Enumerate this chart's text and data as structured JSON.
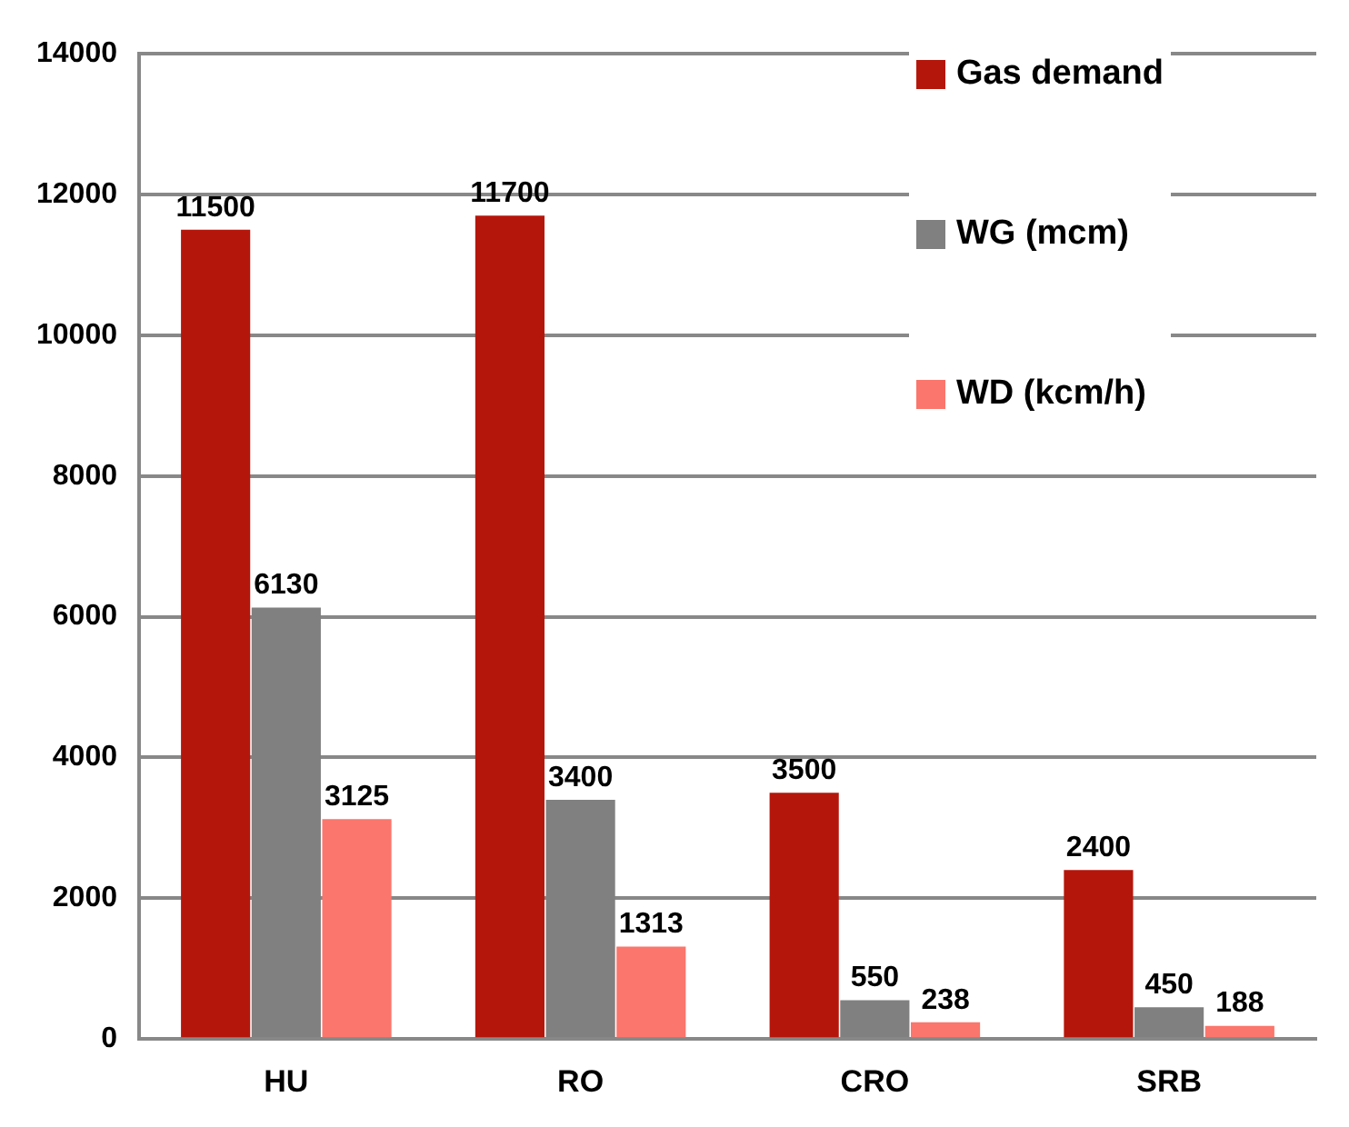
{
  "chart_data": {
    "type": "bar",
    "categories": [
      "HU",
      "RO",
      "CRO",
      "SRB"
    ],
    "series": [
      {
        "name": "Gas demand",
        "color": "#b5160b",
        "values": [
          11500,
          11700,
          3500,
          2400
        ]
      },
      {
        "name": "WG (mcm)",
        "color": "#808080",
        "values": [
          6130,
          3400,
          550,
          450
        ]
      },
      {
        "name": "WD (kcm/h)",
        "color": "#fb766c",
        "values": [
          3125,
          1313,
          238,
          188
        ]
      }
    ],
    "ylim": [
      0,
      14000
    ],
    "yticks": [
      0,
      2000,
      4000,
      6000,
      8000,
      10000,
      12000,
      14000
    ],
    "grid": "y",
    "legend": "top right",
    "data_labels": true
  }
}
